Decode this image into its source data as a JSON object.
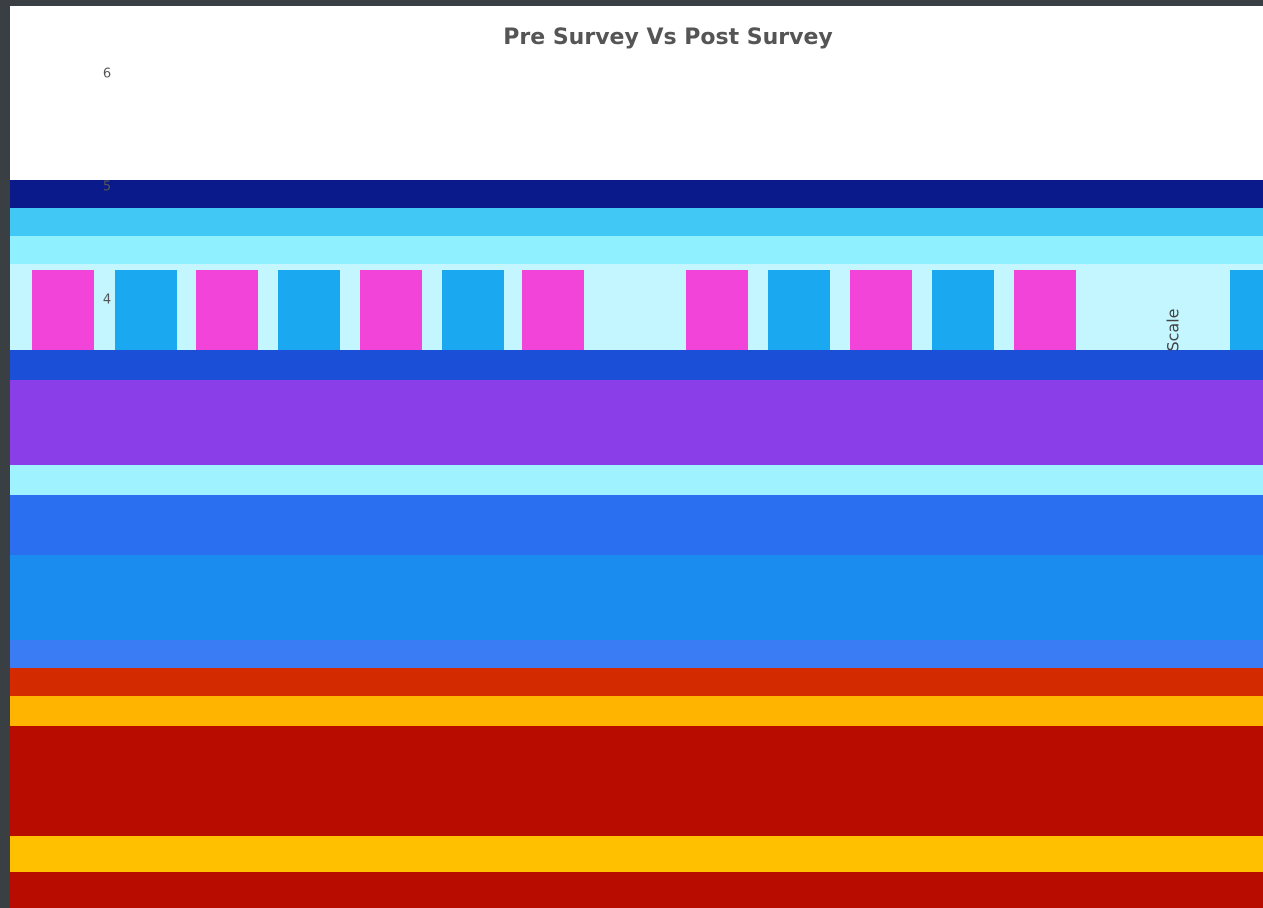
{
  "chart_data": {
    "type": "bar",
    "title": "Pre Survey Vs Post Survey",
    "y_label": "Scale",
    "ylim": [
      4,
      6
    ],
    "yticks": [
      4,
      5,
      6
    ],
    "grid": false
  }
}
